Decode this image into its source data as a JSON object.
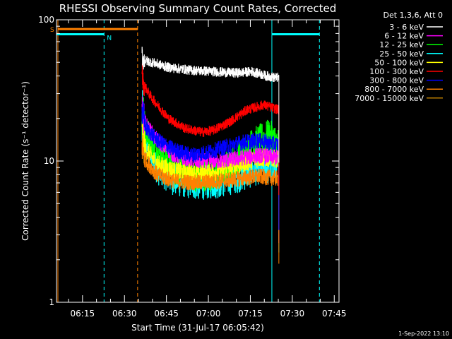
{
  "chart_data": {
    "type": "line",
    "title": "RHESSI Observing Summary Count Rates, Corrected",
    "xlabel": "Start Time (31-Jul-17 06:05:42)",
    "ylabel": "Corrected Count Rate (s⁻¹ detector⁻¹)",
    "yscale": "log",
    "ylim": [
      1,
      100
    ],
    "xlim_minutes": [
      0,
      101
    ],
    "x_ticks": [
      {
        "label": "06:15",
        "minute": 9.3
      },
      {
        "label": "06:30",
        "minute": 24.3
      },
      {
        "label": "06:45",
        "minute": 39.3
      },
      {
        "label": "07:00",
        "minute": 54.3
      },
      {
        "label": "07:15",
        "minute": 69.3
      },
      {
        "label": "07:30",
        "minute": 84.3
      },
      {
        "label": "07:45",
        "minute": 99.3
      }
    ],
    "y_ticks": [
      {
        "label": "1",
        "value": 1
      },
      {
        "label": "10",
        "value": 10
      },
      {
        "label": "100",
        "value": 100
      }
    ],
    "legend_header": "Det 1,3,6, Att 0",
    "legend_position": "right",
    "series": [
      {
        "name": "3 - 6 keV",
        "color": "#ffffff",
        "profile": [
          [
            30.5,
            58
          ],
          [
            31,
            52
          ],
          [
            34,
            50
          ],
          [
            40,
            46
          ],
          [
            48,
            44
          ],
          [
            56,
            43
          ],
          [
            64,
            42
          ],
          [
            70,
            43
          ],
          [
            75,
            40
          ],
          [
            78,
            39
          ],
          [
            79.5,
            39
          ]
        ],
        "noise": 0.06
      },
      {
        "name": "6 - 12 keV",
        "color": "#ff00ff",
        "profile": [
          [
            30.5,
            22
          ],
          [
            32,
            18
          ],
          [
            36,
            14
          ],
          [
            42,
            11
          ],
          [
            50,
            10
          ],
          [
            58,
            10
          ],
          [
            66,
            10.5
          ],
          [
            72,
            11
          ],
          [
            79.5,
            10.5
          ]
        ],
        "noise": 0.1
      },
      {
        "name": "12 - 25 keV",
        "color": "#00ff00",
        "profile": [
          [
            30.5,
            20
          ],
          [
            32,
            16
          ],
          [
            36,
            12
          ],
          [
            42,
            9
          ],
          [
            50,
            8
          ],
          [
            58,
            8.2
          ],
          [
            64,
            10
          ],
          [
            70,
            13
          ],
          [
            76,
            15
          ],
          [
            79.5,
            13
          ]
        ],
        "noise": 0.22
      },
      {
        "name": "25 - 50 keV",
        "color": "#00ffff",
        "profile": [
          [
            30.5,
            18
          ],
          [
            32,
            13
          ],
          [
            36,
            9
          ],
          [
            42,
            7.5
          ],
          [
            50,
            7
          ],
          [
            58,
            7.2
          ],
          [
            66,
            8
          ],
          [
            72,
            9
          ],
          [
            79.5,
            9
          ]
        ],
        "noise": 0.22
      },
      {
        "name": "50 - 100 keV",
        "color": "#ffff00",
        "profile": [
          [
            30.5,
            15
          ],
          [
            32,
            12
          ],
          [
            36,
            9.5
          ],
          [
            42,
            8.5
          ],
          [
            50,
            8.2
          ],
          [
            58,
            8.5
          ],
          [
            66,
            9.5
          ],
          [
            72,
            10.5
          ],
          [
            79.5,
            10.5
          ]
        ],
        "noise": 0.12
      },
      {
        "name": "100 - 300 keV",
        "color": "#ff0000",
        "profile": [
          [
            30.5,
            45
          ],
          [
            31,
            35
          ],
          [
            34,
            28
          ],
          [
            40,
            20
          ],
          [
            46,
            17
          ],
          [
            52,
            16
          ],
          [
            56,
            16.5
          ],
          [
            62,
            19
          ],
          [
            68,
            23
          ],
          [
            74,
            25
          ],
          [
            79.5,
            23
          ]
        ],
        "noise": 0.06
      },
      {
        "name": "300 - 800 keV",
        "color": "#0000ff",
        "profile": [
          [
            30.5,
            22
          ],
          [
            32,
            17
          ],
          [
            36,
            14
          ],
          [
            42,
            12
          ],
          [
            48,
            11
          ],
          [
            54,
            11.5
          ],
          [
            60,
            12.5
          ],
          [
            66,
            13.5
          ],
          [
            72,
            14
          ],
          [
            79.5,
            13
          ]
        ],
        "noise": 0.1
      },
      {
        "name": "800 - 7000 keV",
        "color": "#ff8000",
        "profile": [
          [
            30.5,
            13
          ],
          [
            32,
            10
          ],
          [
            36,
            8
          ],
          [
            42,
            7.2
          ],
          [
            50,
            7
          ],
          [
            58,
            7.2
          ],
          [
            66,
            7.5
          ],
          [
            72,
            7.8
          ],
          [
            79.5,
            7.5
          ]
        ],
        "noise": 0.1
      },
      {
        "name": "7000 - 15000 keV",
        "color": "#c08000",
        "profile": [],
        "noise": 0
      }
    ],
    "data_range_minutes": [
      30.5,
      79.5
    ],
    "annotations": [
      {
        "label": "S",
        "color": "#ff8000",
        "minute_start": 0.5,
        "minute_end": 29.0,
        "y_value": 86
      },
      {
        "label": "N",
        "color": "#00ffff",
        "minute_start": 0.0,
        "minute_end": 17.0,
        "y_value": 79
      },
      {
        "label": "",
        "color": "#00ffff",
        "minute_start": 77.0,
        "minute_end": 94.0,
        "y_value": 79
      }
    ],
    "vlines": [
      {
        "color": "#00ffff",
        "style": "solid",
        "minute": 0.0
      },
      {
        "color": "#ff8000",
        "style": "solid",
        "minute": 0.5
      },
      {
        "color": "#00ffff",
        "style": "dashed",
        "minute": 17.0
      },
      {
        "color": "#ff8000",
        "style": "dashed",
        "minute": 29.0
      },
      {
        "color": "#00ffff",
        "style": "solid",
        "minute": 77.0
      },
      {
        "color": "#00ffff",
        "style": "dashed",
        "minute": 94.0
      }
    ]
  },
  "footer": {
    "timestamp": "1-Sep-2022 13:10"
  }
}
